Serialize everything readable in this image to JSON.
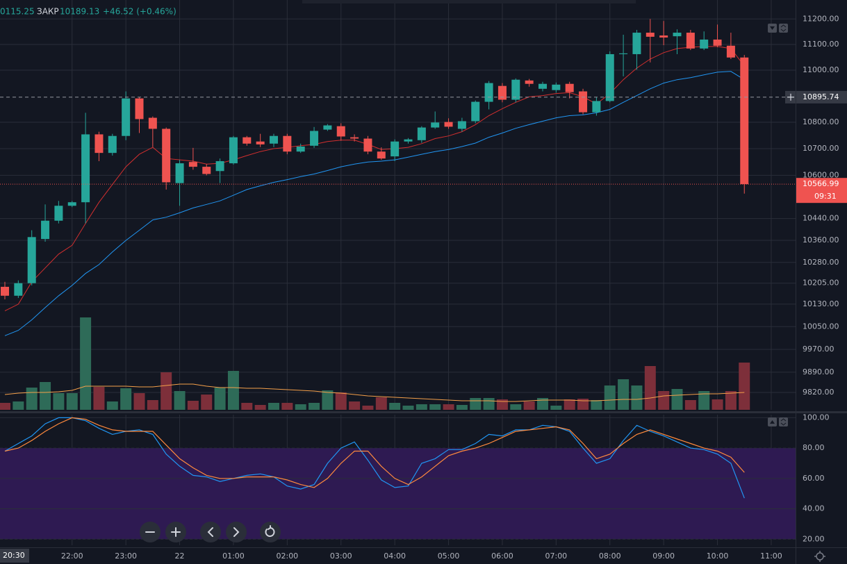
{
  "header": {
    "prev": "0115.25",
    "close_label": "ЗАКР",
    "close": "10189.13",
    "change": "+46.52 (+0.46%)"
  },
  "chart_data": [
    {
      "type": "candlestick",
      "log_scale": true,
      "grid": true,
      "up_color": "#26a69a",
      "down_color": "#ef5350",
      "ylim": [
        9760,
        11275
      ],
      "yticks": [
        {
          "value": 11200,
          "label": "11200.00"
        },
        {
          "value": 11100,
          "label": "11100.00"
        },
        {
          "value": 11000,
          "label": "11000.00"
        },
        {
          "value": 10800,
          "label": "10800.00"
        },
        {
          "value": 10700,
          "label": "10700.00"
        },
        {
          "value": 10600,
          "label": "10600.00"
        },
        {
          "value": 10440,
          "label": "10440.00"
        },
        {
          "value": 10360,
          "label": "10360.00"
        },
        {
          "value": 10280,
          "label": "10280.00"
        },
        {
          "value": 10205,
          "label": "10205.00"
        },
        {
          "value": 10130,
          "label": "10130.00"
        },
        {
          "value": 10050,
          "label": "10050.00"
        },
        {
          "value": 9970,
          "label": "9970.00"
        },
        {
          "value": 9890,
          "label": "9890.00"
        },
        {
          "value": 9820,
          "label": "9820.00"
        }
      ],
      "x_labels": [
        "22:00",
        "23:00",
        "22",
        "01:00",
        "02:00",
        "03:00",
        "04:00",
        "05:00",
        "06:00",
        "07:00",
        "08:00",
        "09:00",
        "10:00",
        "11:00"
      ],
      "crosshair_time": "20:30",
      "crosshair_price": {
        "value": 10895.74,
        "label": "10895.74"
      },
      "countdown": "09:31",
      "current_price_label": "10566.99",
      "open": [
        10192,
        10160,
        10205,
        10365,
        10432,
        10487,
        10500,
        10754,
        10684,
        10748,
        10891,
        10817,
        10775,
        10571,
        10650,
        10632,
        10616,
        10645,
        10743,
        10727,
        10719,
        10748,
        10689,
        10711,
        10772,
        10785,
        10743,
        10738,
        10689,
        10671,
        10727,
        10732,
        10780,
        10801,
        10775,
        10804,
        10878,
        10939,
        10886,
        10960,
        10928,
        10923,
        10947,
        10918,
        10838,
        10881,
        11062,
        11062,
        11146,
        11135,
        11132,
        11146,
        11084,
        11119,
        11095,
        11049
      ],
      "high": [
        10210,
        10215,
        10397,
        10492,
        10505,
        10505,
        10836,
        10764,
        10756,
        10918,
        10896,
        10822,
        10780,
        10658,
        10703,
        10642,
        10663,
        10748,
        10748,
        10756,
        10756,
        10756,
        10719,
        10782,
        10793,
        10796,
        10754,
        10748,
        10705,
        10735,
        10740,
        10785,
        10841,
        10815,
        10817,
        10883,
        10958,
        10950,
        10968,
        10966,
        10955,
        10952,
        10955,
        10928,
        10896,
        11073,
        11138,
        11157,
        11200,
        11192,
        11159,
        11157,
        11151,
        11178,
        11146,
        11059
      ],
      "low": [
        10147,
        10152,
        10197,
        10355,
        10422,
        10482,
        10422,
        10653,
        10674,
        10732,
        10759,
        10706,
        10547,
        10487,
        10621,
        10600,
        10571,
        10640,
        10711,
        10706,
        10706,
        10679,
        10684,
        10703,
        10767,
        10730,
        10727,
        10679,
        10658,
        10653,
        10719,
        10722,
        10775,
        10775,
        10764,
        10796,
        10849,
        10876,
        10876,
        10936,
        10918,
        10913,
        10891,
        10830,
        10825,
        10876,
        10976,
        11002,
        11030,
        11097,
        11062,
        11078,
        11078,
        11089,
        11043,
        10532
      ],
      "close": [
        10160,
        10205,
        10372,
        10432,
        10487,
        10500,
        10754,
        10684,
        10748,
        10891,
        10812,
        10775,
        10574,
        10645,
        10632,
        10605,
        10653,
        10743,
        10719,
        10716,
        10748,
        10689,
        10708,
        10767,
        10788,
        10746,
        10738,
        10689,
        10663,
        10727,
        10735,
        10780,
        10799,
        10783,
        10804,
        10878,
        10950,
        10886,
        10963,
        10947,
        10947,
        10944,
        10915,
        10838,
        10881,
        11062,
        11065,
        11146,
        11130,
        11127,
        11146,
        11084,
        11119,
        11095,
        11049,
        10566.99
      ],
      "series": [
        {
          "color": "#d32f2f",
          "values": [
            10106,
            10130,
            10210,
            10260,
            10310,
            10342,
            10422,
            10500,
            10566,
            10632,
            10679,
            10705,
            10663,
            10658,
            10653,
            10642,
            10645,
            10658,
            10674,
            10689,
            10700,
            10705,
            10711,
            10716,
            10727,
            10732,
            10732,
            10716,
            10697,
            10700,
            10705,
            10719,
            10738,
            10748,
            10764,
            10791,
            10825,
            10852,
            10876,
            10897,
            10902,
            10910,
            10913,
            10897,
            10870,
            10910,
            10963,
            11008,
            11043,
            11068,
            11084,
            11089,
            11092,
            11092,
            11084,
            11016
          ]
        },
        {
          "color": "#2196f3",
          "values": [
            10018,
            10037,
            10074,
            10118,
            10160,
            10197,
            10240,
            10272,
            10318,
            10360,
            10397,
            10435,
            10445,
            10461,
            10479,
            10492,
            10505,
            10526,
            10547,
            10561,
            10574,
            10584,
            10595,
            10605,
            10618,
            10632,
            10642,
            10650,
            10653,
            10658,
            10668,
            10679,
            10689,
            10697,
            10708,
            10721,
            10743,
            10759,
            10777,
            10791,
            10804,
            10817,
            10825,
            10828,
            10836,
            10849,
            10876,
            10902,
            10928,
            10950,
            10963,
            10971,
            10982,
            10992,
            10995,
            10963
          ]
        }
      ]
    },
    {
      "type": "volume",
      "up_color": "#2e6b58",
      "down_color": "#7d2f3a",
      "ma_color": "#f5a04a",
      "values": [
        10,
        12,
        32,
        40,
        24,
        24,
        133,
        33,
        12,
        31,
        24,
        14,
        54,
        27,
        13,
        22,
        32,
        56,
        10,
        7,
        10,
        10,
        8,
        10,
        28,
        25,
        12,
        6,
        18,
        10,
        6,
        8,
        8,
        8,
        7,
        17,
        17,
        15,
        8,
        12,
        17,
        6,
        15,
        16,
        14,
        35,
        44,
        35,
        63,
        27,
        30,
        14,
        27,
        15,
        27,
        68
      ],
      "ma": [
        22,
        24,
        25,
        25,
        26,
        28,
        34,
        34,
        34,
        34,
        33,
        33,
        35,
        37,
        37,
        34,
        32,
        32,
        31,
        31,
        30,
        29,
        28,
        27,
        25,
        24,
        22,
        20,
        19,
        18,
        17,
        16,
        15,
        14,
        13,
        13,
        13,
        12,
        12,
        13,
        14,
        14,
        14,
        13,
        13,
        14,
        15,
        15,
        17,
        20,
        21,
        22,
        23,
        23,
        24,
        25
      ]
    },
    {
      "type": "line",
      "grid": true,
      "ylim": [
        16,
        102
      ],
      "band": [
        20,
        80
      ],
      "band_color": "#2e1a52",
      "yticks": [
        {
          "value": 100,
          "label": "100.00"
        },
        {
          "value": 80,
          "label": "80.00"
        },
        {
          "value": 60,
          "label": "60.00"
        },
        {
          "value": 40,
          "label": "40.00"
        },
        {
          "value": 20,
          "label": "20.00"
        }
      ],
      "series": [
        {
          "color": "#2196f3",
          "values": [
            78,
            83,
            88,
            96,
            100,
            100,
            98,
            93,
            89,
            91,
            92,
            89,
            76,
            68,
            62,
            61,
            58,
            60,
            62,
            63,
            61,
            55,
            53,
            56,
            70,
            80,
            84,
            72,
            59,
            54,
            55,
            70,
            73,
            79,
            79,
            83,
            89,
            88,
            92,
            92,
            95,
            94,
            91,
            80,
            70,
            73,
            85,
            95,
            91,
            88,
            84,
            80,
            79,
            76,
            70,
            47
          ]
        },
        {
          "color": "#ff8a3d",
          "values": [
            78,
            80,
            85,
            91,
            96,
            100,
            99,
            95,
            92,
            91,
            91,
            91,
            82,
            73,
            67,
            62,
            60,
            60,
            61,
            61,
            61,
            59,
            56,
            54,
            60,
            70,
            78,
            78,
            68,
            60,
            56,
            61,
            68,
            75,
            78,
            80,
            83,
            87,
            91,
            92,
            93,
            94,
            92,
            83,
            73,
            76,
            83,
            89,
            92,
            89,
            86,
            83,
            80,
            78,
            74,
            64
          ]
        }
      ]
    }
  ]
}
